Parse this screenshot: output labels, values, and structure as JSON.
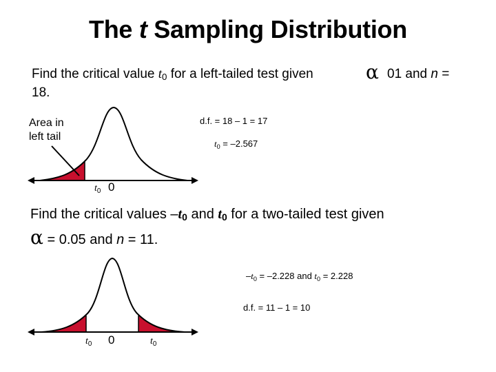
{
  "slide": {
    "title_pre": "The ",
    "title_italic": "t",
    "title_post": " Sampling Distribution"
  },
  "example1": {
    "question_a": "Find the critical value ",
    "var": "t",
    "sub": "0",
    "question_b": " for a left-tailed test given",
    "alpha_symbol": "α",
    "question_c": "01 and ",
    "n_var": "n",
    "question_d": " =",
    "question_e": "18.",
    "area_label_1": "Area in",
    "area_label_2": "left tail",
    "df_eq": "d.f. = 18 – 1 = 17",
    "t_var": "t",
    "t_sub": "0",
    "t_result": " = –2.567",
    "axis_t": "t",
    "axis_t_sub": "0",
    "axis_zero": "0"
  },
  "example2": {
    "question_a": "Find the critical values –",
    "var": "t",
    "sub": "0",
    "question_b": " and ",
    "question_c": " for a two-tailed test given",
    "alpha_symbol": "α",
    "question_d": " = 0.05 and ",
    "n_var": "n",
    "question_e": " = 11.",
    "t_result_a": "–",
    "t_result_b": " = –2.228 and ",
    "t_result_c": " = 2.228",
    "df_eq": "d.f. = 11 – 1 = 10",
    "axis_left_t": "t",
    "axis_left_sub": "0",
    "axis_zero": "0",
    "axis_right_t": "t",
    "axis_right_sub": "0"
  },
  "colors": {
    "tail_fill": "#c8102e",
    "curve": "#000000"
  }
}
